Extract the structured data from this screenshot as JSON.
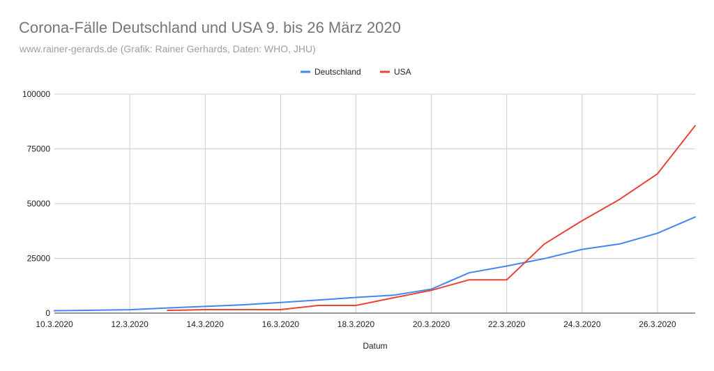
{
  "chart_data": {
    "type": "line",
    "title": "Corona-Fälle Deutschland und USA 9. bis 26 März 2020",
    "subtitle": "www.rainer-gerards.de (Grafik: Rainer Gerhards, Daten: WHO, JHU)",
    "xlabel": "Datum",
    "ylabel": "",
    "x": [
      "10.3.2020",
      "11.3.2020",
      "12.3.2020",
      "13.3.2020",
      "14.3.2020",
      "15.3.2020",
      "16.3.2020",
      "17.3.2020",
      "18.3.2020",
      "19.3.2020",
      "20.3.2020",
      "21.3.2020",
      "22.3.2020",
      "23.3.2020",
      "24.3.2020",
      "25.3.2020",
      "26.3.2020",
      "27.3.2020"
    ],
    "x_tick_labels": [
      "10.3.2020",
      "12.3.2020",
      "14.3.2020",
      "16.3.2020",
      "18.3.2020",
      "20.3.2020",
      "22.3.2020",
      "24.3.2020",
      "26.3.2020"
    ],
    "y_tick_labels": [
      "0",
      "25000",
      "50000",
      "75000",
      "100000"
    ],
    "ylim": [
      0,
      100000
    ],
    "grid": true,
    "legend_position": "top-center",
    "series": [
      {
        "name": "Deutschland",
        "color": "#4285f4",
        "values": [
          1100,
          1300,
          1550,
          2350,
          3050,
          3800,
          4850,
          5950,
          7150,
          8200,
          10950,
          18400,
          21500,
          24900,
          29100,
          31600,
          36500,
          43900
        ]
      },
      {
        "name": "USA",
        "color": "#ea4335",
        "values": [
          null,
          null,
          null,
          1250,
          1600,
          1600,
          1600,
          3500,
          3500,
          7000,
          10400,
          15200,
          15200,
          31600,
          42200,
          52000,
          63600,
          85600
        ]
      }
    ]
  }
}
